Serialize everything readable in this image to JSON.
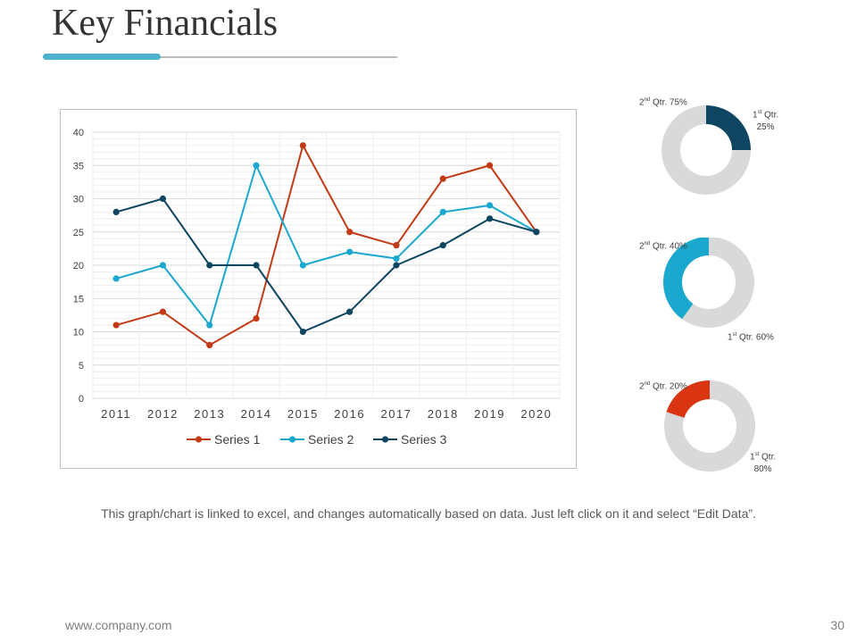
{
  "slide": {
    "title": "Key Financials",
    "caption": "This graph/chart is linked to excel, and changes automatically  based on data. Just left click on it and select “Edit Data”.",
    "footer_url": "www.company.com",
    "page_number": "30"
  },
  "colors": {
    "accent": "#4fb2cc",
    "series1": "#c23b16",
    "series2": "#1aa8cf",
    "series3": "#0e4560",
    "donut_track": "#d9d9d9"
  },
  "chart_data": [
    {
      "type": "line",
      "title": "",
      "xlabel": "",
      "ylabel": "",
      "x": [
        "2011",
        "2012",
        "2013",
        "2014",
        "2015",
        "2016",
        "2017",
        "2018",
        "2019",
        "2020"
      ],
      "ylim": [
        0,
        40
      ],
      "yticks": [
        "0",
        "5",
        "10",
        "15",
        "20",
        "25",
        "30",
        "35",
        "40"
      ],
      "grid": true,
      "legend_position": "bottom",
      "series": [
        {
          "name": "Series 1",
          "values": [
            11,
            13,
            8,
            12,
            38,
            25,
            23,
            33,
            35,
            25
          ]
        },
        {
          "name": "Series 2",
          "values": [
            18,
            20,
            11,
            35,
            20,
            22,
            21,
            28,
            29,
            25
          ]
        },
        {
          "name": "Series 3",
          "values": [
            28,
            30,
            20,
            20,
            10,
            13,
            20,
            23,
            27,
            25
          ]
        }
      ]
    },
    {
      "type": "pie",
      "variant": "donut",
      "labels": [
        {
          "sup": "st",
          "prefix": "1",
          "text": " Qtr.",
          "value": "25%"
        },
        {
          "sup": "nd",
          "prefix": "2",
          "text": " Qtr. ",
          "value": "75%"
        }
      ],
      "values": [
        25,
        75
      ],
      "highlight_color": "#0e4560"
    },
    {
      "type": "pie",
      "variant": "donut",
      "labels": [
        {
          "sup": "st",
          "prefix": "1",
          "text": " Qtr. ",
          "value": "60%"
        },
        {
          "sup": "nd",
          "prefix": "2",
          "text": " Qtr. ",
          "value": "40%"
        }
      ],
      "values": [
        60,
        40
      ],
      "highlight_color": "#1aa8cf"
    },
    {
      "type": "pie",
      "variant": "donut",
      "labels": [
        {
          "sup": "st",
          "prefix": "1",
          "text": " Qtr.",
          "value": "80%"
        },
        {
          "sup": "nd",
          "prefix": "2",
          "text": " Qtr. ",
          "value": "20%"
        }
      ],
      "values": [
        80,
        20
      ],
      "highlight_color": "#d93512"
    }
  ]
}
